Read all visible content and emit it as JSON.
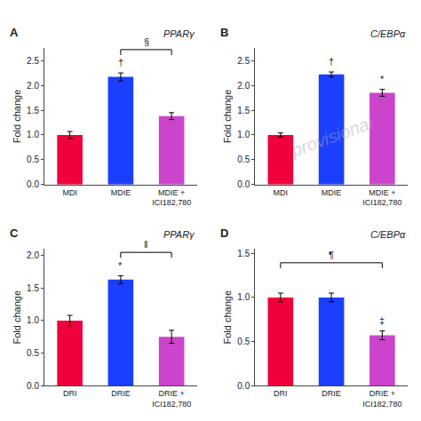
{
  "chart_data": [
    {
      "type": "bar",
      "label": "A",
      "title": "PPARγ",
      "categories": [
        "MDI",
        "MDIE",
        "MDIE +\nICI182,780"
      ],
      "values": [
        1.0,
        2.17,
        1.38
      ],
      "errors": [
        0.07,
        0.08,
        0.07
      ],
      "colors": [
        "#F0003C",
        "#1A3FFF",
        "#CC44CC"
      ],
      "ylabel": "Fold change",
      "ylim": [
        0,
        2.75
      ],
      "yticks": [
        {
          "value": 0,
          "label": "0.0"
        },
        0.5,
        {
          "value": 1.0,
          "label": "1.0"
        },
        1.5,
        {
          "value": 2.0,
          "label": "2.0"
        },
        2.5
      ],
      "grid": false,
      "bar_annotations": [
        null,
        "†",
        null
      ],
      "bracket": {
        "from": "MDIE",
        "to": "MDIE +\nICI182,780",
        "text": "§"
      }
    },
    {
      "type": "bar",
      "label": "B",
      "title": "C/EBPα",
      "categories": [
        "MDI",
        "MDIE",
        "MDIE +\nICI182,780"
      ],
      "values": [
        1.0,
        2.22,
        1.85
      ],
      "errors": [
        0.04,
        0.05,
        0.07
      ],
      "colors": [
        "#F0003C",
        "#1A3FFF",
        "#CC44CC"
      ],
      "ylabel": "Fold change",
      "ylim": [
        0,
        2.75
      ],
      "yticks": [
        {
          "value": 0,
          "label": "0.0"
        },
        0.5,
        {
          "value": 1.0,
          "label": "1.0"
        },
        1.5,
        {
          "value": 2.0,
          "label": "2.0"
        },
        2.5
      ],
      "grid": false,
      "bar_annotations": [
        null,
        "†",
        "*"
      ]
    },
    {
      "type": "bar",
      "label": "C",
      "title": "PPARγ",
      "categories": [
        "DRI",
        "DRIE",
        "DRIE +\nICI182,780"
      ],
      "values": [
        1.0,
        1.63,
        0.75
      ],
      "errors": [
        0.08,
        0.06,
        0.1
      ],
      "colors": [
        "#F0003C",
        "#1A3FFF",
        "#CC44CC"
      ],
      "ylabel": "Fold change",
      "ylim": [
        0,
        2.1
      ],
      "yticks": [
        {
          "value": 0,
          "label": "0.0"
        },
        0.5,
        {
          "value": 1.0,
          "label": "1.0"
        },
        1.5,
        {
          "value": 2.0,
          "label": "2.0"
        }
      ],
      "grid": false,
      "bar_annotations": [
        null,
        "*",
        null
      ],
      "bracket": {
        "from": "DRIE",
        "to": "DRIE +\nICI182,780",
        "text": "‖"
      }
    },
    {
      "type": "bar",
      "label": "D",
      "title": "C/EBPα",
      "categories": [
        "DRI",
        "DRIE",
        "DRIE +\nICI182,780"
      ],
      "values": [
        1.0,
        1.0,
        0.57
      ],
      "errors": [
        0.05,
        0.05,
        0.05
      ],
      "colors": [
        "#F0003C",
        "#1A3FFF",
        "#CC44CC"
      ],
      "ylabel": "Fold change",
      "ylim": [
        0,
        1.55
      ],
      "yticks": [
        {
          "value": 0,
          "label": "0.0"
        },
        0.5,
        {
          "value": 1.0,
          "label": "1.0"
        },
        1.5
      ],
      "grid": false,
      "bar_annotations": [
        null,
        null,
        "‡"
      ],
      "bracket": {
        "from": "DRI",
        "to": "DRIE +\nICI182,780",
        "text": "¶"
      }
    }
  ],
  "watermark": "provisional"
}
